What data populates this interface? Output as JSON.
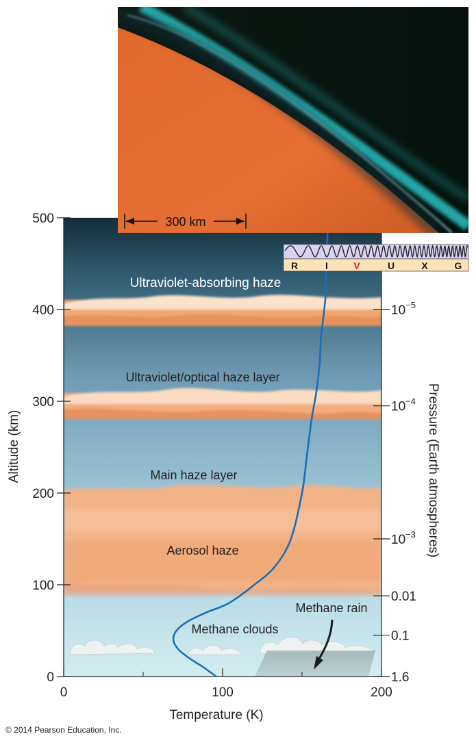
{
  "figure": {
    "copyright": "© 2014 Pearson Education, Inc."
  },
  "photo": {
    "scale_label": "300 km"
  },
  "spectrum_bar": {
    "bands": [
      "R",
      "I",
      "V",
      "U",
      "X",
      "G"
    ],
    "highlight_band": "V",
    "highlight_color": "#d6202a",
    "background": "#d9d3f0",
    "label_strip": "#fbe3b9"
  },
  "axes": {
    "x_title": "Temperature (K)",
    "left_title": "Altitude (km)",
    "right_title": "Pressure (Earth atmospheres)",
    "x_ticks": [
      "0",
      "100",
      "200"
    ],
    "left_ticks": [
      "0",
      "100",
      "200",
      "300",
      "400",
      "500"
    ],
    "right_ticks": [
      {
        "alt": 0,
        "base": "1.6",
        "exp": ""
      },
      {
        "alt": 45,
        "base": "0.1",
        "exp": ""
      },
      {
        "alt": 88,
        "base": "0.01",
        "exp": ""
      },
      {
        "alt": 150,
        "base": "10",
        "exp": "−3"
      },
      {
        "alt": 295,
        "base": "10",
        "exp": "−4"
      },
      {
        "alt": 400,
        "base": "10",
        "exp": "−5"
      }
    ]
  },
  "layers": {
    "uv_haze": "Ultraviolet-absorbing haze",
    "uv_optical": "Ultraviolet/optical haze layer",
    "main_haze": "Main haze layer",
    "aerosol": "Aerosol haze",
    "methane_clouds": "Methane clouds",
    "methane_rain": "Methane rain"
  },
  "colors": {
    "curve": "#1a6fb5",
    "haze": "#f0a56c",
    "sky_top": "#15303f",
    "sky_bottom": "#cfe9ee"
  },
  "chart_data": {
    "type": "line",
    "xlabel": "Temperature (K)",
    "ylabel": "Altitude (km)",
    "y2label": "Pressure (Earth atmospheres)",
    "xlim": [
      0,
      200
    ],
    "ylim": [
      0,
      500
    ],
    "series": [
      {
        "x": [
          96,
          88,
          79,
          72,
          69,
          71,
          78,
          90,
          104,
          120,
          133,
          143,
          150,
          153,
          156,
          159,
          161,
          162,
          164,
          165,
          165,
          166,
          166
        ],
        "y": [
          0,
          10,
          20,
          30,
          40,
          50,
          60,
          70,
          80,
          100,
          120,
          150,
          200,
          240,
          280,
          310,
          340,
          370,
          400,
          420,
          450,
          480,
          500
        ]
      }
    ]
  }
}
